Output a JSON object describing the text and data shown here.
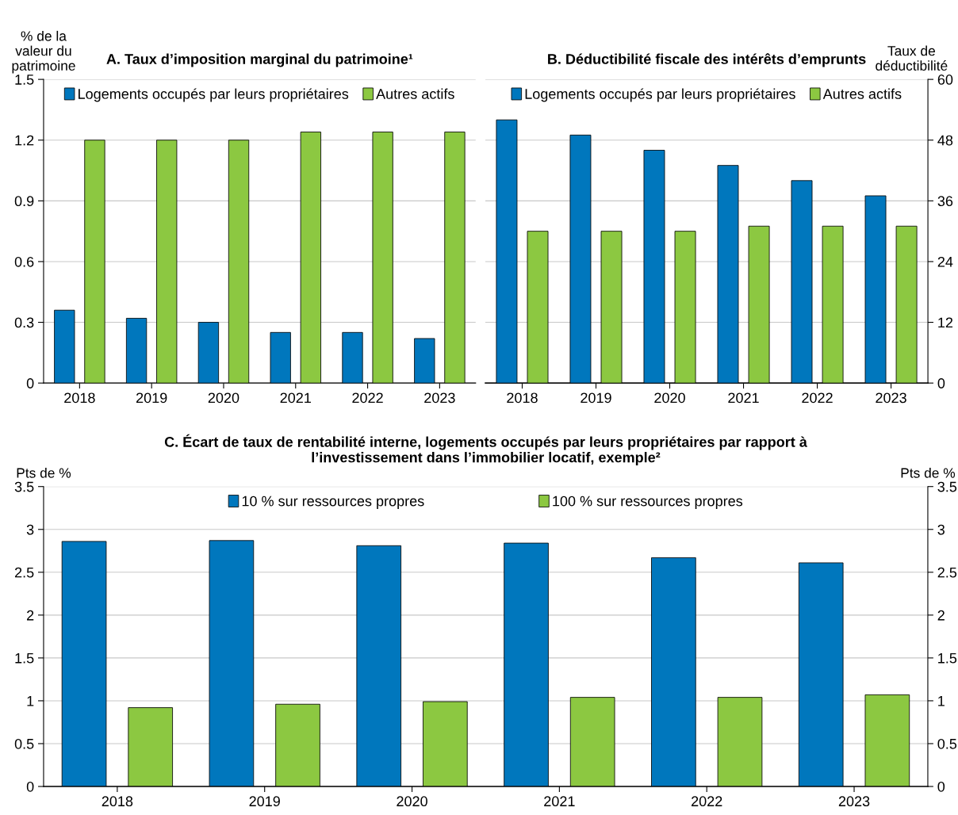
{
  "chart_data": [
    {
      "type": "bar",
      "title": "A. Taux d’imposition marginal du patrimoine¹",
      "ylabel": "% de la\nvaleur du\npatrimoine",
      "categories": [
        "2018",
        "2019",
        "2020",
        "2021",
        "2022",
        "2023"
      ],
      "series": [
        {
          "name": "Logements occupés par leurs propriétaires",
          "color": "#0077bd",
          "values": [
            0.36,
            0.32,
            0.3,
            0.25,
            0.25,
            0.22
          ]
        },
        {
          "name": "Autres actifs",
          "color": "#8cc841",
          "values": [
            1.2,
            1.2,
            1.2,
            1.24,
            1.24,
            1.24
          ]
        }
      ],
      "ylim": [
        0,
        1.5
      ],
      "yticks": [
        0,
        0.3,
        0.6,
        0.9,
        1.2,
        1.5
      ],
      "grid": "y",
      "legend": "top"
    },
    {
      "type": "bar",
      "title": "B. Déductibilité fiscale des intérêts d’emprunts",
      "y2label": "Taux de\ndéductibilité",
      "categories": [
        "2018",
        "2019",
        "2020",
        "2021",
        "2022",
        "2023"
      ],
      "series": [
        {
          "name": "Logements occupés par leurs propriétaires",
          "color": "#0077bd",
          "axis": "y2",
          "values": [
            52,
            49,
            46,
            43,
            40,
            37
          ]
        },
        {
          "name": "Autres actifs",
          "color": "#8cc841",
          "axis": "y2",
          "values": [
            30,
            30,
            30,
            31,
            31,
            31
          ]
        }
      ],
      "y2lim": [
        0,
        60
      ],
      "y2ticks": [
        0,
        12,
        24,
        36,
        48,
        60
      ],
      "grid": "y",
      "legend": "top"
    },
    {
      "type": "bar",
      "title": "C. Écart de taux de rentabilité interne, logements occupés par leurs propriétaires par rapport à\nl’investissement dans l’immobilier locatif, exemple²",
      "ylabel": "Pts de %",
      "y2label": "Pts de %",
      "categories": [
        "2018",
        "2019",
        "2020",
        "2021",
        "2022",
        "2023"
      ],
      "series": [
        {
          "name": "10 % sur ressources propres",
          "color": "#0077bd",
          "values": [
            2.86,
            2.87,
            2.81,
            2.84,
            2.67,
            2.61
          ]
        },
        {
          "name": "100 % sur ressources propres",
          "color": "#8cc841",
          "values": [
            0.92,
            0.96,
            0.99,
            1.04,
            1.04,
            1.07
          ]
        }
      ],
      "ylim": [
        0,
        3.5
      ],
      "yticks": [
        0,
        0.5,
        1,
        1.5,
        2,
        2.5,
        3,
        3.5
      ],
      "y2lim": [
        0,
        3.5
      ],
      "y2ticks": [
        0,
        0.5,
        1,
        1.5,
        2,
        2.5,
        3,
        3.5
      ],
      "grid": "y",
      "legend": "top"
    }
  ]
}
